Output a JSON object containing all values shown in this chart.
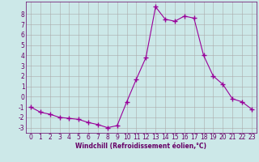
{
  "x": [
    0,
    1,
    2,
    3,
    4,
    5,
    6,
    7,
    8,
    9,
    10,
    11,
    12,
    13,
    14,
    15,
    16,
    17,
    18,
    19,
    20,
    21,
    22,
    23
  ],
  "y": [
    -1,
    -1.5,
    -1.7,
    -2.0,
    -2.1,
    -2.2,
    -2.5,
    -2.7,
    -3.0,
    -2.8,
    -0.5,
    1.7,
    3.8,
    8.7,
    7.5,
    7.3,
    7.8,
    7.6,
    4.0,
    2.0,
    1.2,
    -0.2,
    -0.5,
    -1.2
  ],
  "line_color": "#990099",
  "marker": "+",
  "marker_size": 4,
  "bg_color": "#cce8e8",
  "grid_color": "#aaaaaa",
  "xlabel": "Windchill (Refroidissement éolien,°C)",
  "xlim": [
    -0.5,
    23.5
  ],
  "ylim": [
    -3.5,
    9.2
  ],
  "yticks": [
    -3,
    -2,
    -1,
    0,
    1,
    2,
    3,
    4,
    5,
    6,
    7,
    8
  ],
  "xticks": [
    0,
    1,
    2,
    3,
    4,
    5,
    6,
    7,
    8,
    9,
    10,
    11,
    12,
    13,
    14,
    15,
    16,
    17,
    18,
    19,
    20,
    21,
    22,
    23
  ],
  "label_color": "#660066",
  "tick_label_color": "#660066",
  "label_fontsize": 5.5,
  "tick_fontsize": 5.5
}
